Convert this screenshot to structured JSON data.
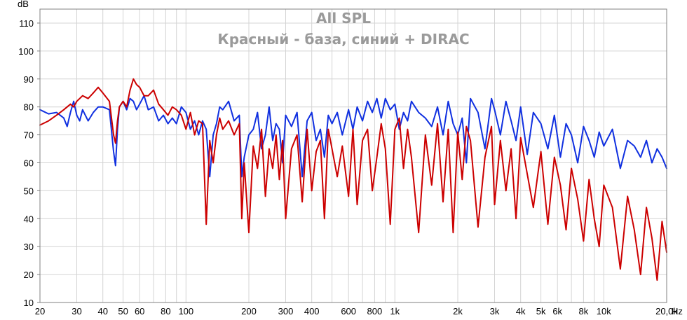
{
  "chart_data": {
    "type": "line",
    "title": "All SPL",
    "subtitle": "Красный - база, синий + DIRAC",
    "ylabel": "dB",
    "xunit": "Hz",
    "xscale": "log",
    "xlim": [
      20,
      20000
    ],
    "ylim": [
      10,
      115
    ],
    "yticks": [
      10,
      20,
      30,
      40,
      50,
      60,
      70,
      80,
      90,
      100,
      110
    ],
    "xticks": [
      {
        "value": 20,
        "label": "20"
      },
      {
        "value": 30,
        "label": "30"
      },
      {
        "value": 40,
        "label": "40"
      },
      {
        "value": 50,
        "label": "50"
      },
      {
        "value": 60,
        "label": "60"
      },
      {
        "value": 80,
        "label": "80"
      },
      {
        "value": 100,
        "label": "100"
      },
      {
        "value": 200,
        "label": "200"
      },
      {
        "value": 300,
        "label": "300"
      },
      {
        "value": 400,
        "label": "400"
      },
      {
        "value": 600,
        "label": "600"
      },
      {
        "value": 800,
        "label": "800"
      },
      {
        "value": 1000,
        "label": "1k"
      },
      {
        "value": 2000,
        "label": "2k"
      },
      {
        "value": 3000,
        "label": "3k"
      },
      {
        "value": 4000,
        "label": "4k"
      },
      {
        "value": 5000,
        "label": "5k"
      },
      {
        "value": 6000,
        "label": "6k"
      },
      {
        "value": 8000,
        "label": "8k"
      },
      {
        "value": 10000,
        "label": "10k"
      },
      {
        "value": 20000,
        "label": "20,0k"
      }
    ],
    "grid": true,
    "series": [
      {
        "color": "#1030e0",
        "x": [
          20,
          22,
          24,
          26,
          27,
          28,
          29,
          30,
          31,
          32,
          34,
          36,
          38,
          40,
          43,
          45,
          46,
          47,
          48,
          50,
          52,
          54,
          56,
          58,
          60,
          63,
          66,
          70,
          74,
          78,
          82,
          86,
          90,
          95,
          100,
          105,
          110,
          115,
          120,
          125,
          130,
          135,
          140,
          145,
          150,
          160,
          170,
          180,
          185,
          190,
          200,
          210,
          220,
          230,
          240,
          250,
          260,
          270,
          280,
          290,
          300,
          320,
          340,
          360,
          380,
          400,
          420,
          440,
          460,
          480,
          500,
          530,
          560,
          600,
          630,
          660,
          700,
          740,
          780,
          820,
          860,
          900,
          950,
          1000,
          1050,
          1100,
          1150,
          1200,
          1300,
          1400,
          1500,
          1600,
          1700,
          1800,
          1900,
          2000,
          2100,
          2200,
          2300,
          2500,
          2700,
          2900,
          3000,
          3200,
          3400,
          3600,
          3800,
          4000,
          4300,
          4600,
          5000,
          5400,
          5800,
          6200,
          6600,
          7000,
          7500,
          8000,
          8500,
          9000,
          9500,
          10000,
          11000,
          12000,
          13000,
          14000,
          15000,
          16000,
          17000,
          18000,
          19000,
          20000
        ],
        "y": [
          79,
          77.5,
          78,
          76,
          73,
          78,
          82,
          77,
          75,
          79,
          75,
          78,
          80,
          80,
          79,
          64,
          59,
          72,
          80,
          82,
          79,
          83,
          82,
          79,
          81,
          84,
          79,
          80,
          75,
          77,
          74,
          76,
          74,
          80,
          78,
          72,
          75,
          70,
          75,
          72,
          55,
          70,
          74,
          80,
          79,
          82,
          75,
          77,
          55,
          62,
          70,
          72,
          78,
          65,
          70,
          80,
          68,
          74,
          72,
          60,
          77,
          73,
          78,
          55,
          75,
          78,
          68,
          72,
          62,
          77,
          74,
          78,
          70,
          79,
          72,
          80,
          75,
          82,
          78,
          83,
          76,
          83,
          79,
          81,
          72,
          78,
          75,
          82,
          78,
          76,
          73,
          80,
          70,
          82,
          74,
          70,
          76,
          60,
          83,
          78,
          65,
          83,
          79,
          70,
          82,
          75,
          68,
          80,
          63,
          78,
          74,
          65,
          77,
          62,
          74,
          70,
          60,
          73,
          68,
          62,
          71,
          66,
          72,
          58,
          68,
          66,
          62,
          68,
          60,
          65,
          62,
          58
        ]
      },
      {
        "color": "#cc0000",
        "x": [
          20,
          22,
          24,
          26,
          27,
          28,
          29,
          30,
          31,
          32,
          34,
          36,
          38,
          40,
          43,
          45,
          46,
          47,
          48,
          50,
          52,
          54,
          56,
          58,
          60,
          63,
          66,
          70,
          74,
          78,
          82,
          86,
          90,
          95,
          100,
          105,
          110,
          115,
          120,
          125,
          130,
          135,
          140,
          145,
          150,
          160,
          170,
          180,
          185,
          190,
          200,
          210,
          220,
          230,
          240,
          250,
          260,
          270,
          280,
          290,
          300,
          320,
          340,
          360,
          380,
          400,
          420,
          440,
          460,
          480,
          500,
          530,
          560,
          600,
          630,
          660,
          700,
          740,
          780,
          820,
          860,
          900,
          950,
          1000,
          1050,
          1100,
          1150,
          1200,
          1300,
          1400,
          1500,
          1600,
          1700,
          1800,
          1900,
          2000,
          2100,
          2200,
          2300,
          2500,
          2700,
          2900,
          3000,
          3200,
          3400,
          3600,
          3800,
          4000,
          4300,
          4600,
          5000,
          5400,
          5800,
          6200,
          6600,
          7000,
          7500,
          8000,
          8500,
          9000,
          9500,
          10000,
          11000,
          12000,
          13000,
          14000,
          15000,
          16000,
          17000,
          18000,
          19000,
          20000
        ],
        "y": [
          73.5,
          75,
          77,
          79,
          80,
          81,
          80,
          82,
          83,
          84,
          83,
          85,
          87,
          85,
          82,
          70,
          67,
          75,
          80,
          82,
          80,
          86,
          90,
          88,
          87,
          84,
          84,
          86,
          81,
          79,
          77,
          80,
          79,
          77,
          72,
          78,
          70,
          75,
          74,
          38,
          68,
          60,
          70,
          76,
          72,
          75,
          70,
          74,
          40,
          60,
          35,
          66,
          58,
          72,
          48,
          65,
          58,
          70,
          54,
          68,
          40,
          65,
          70,
          46,
          72,
          50,
          64,
          68,
          40,
          72,
          65,
          55,
          66,
          48,
          72,
          45,
          68,
          72,
          50,
          62,
          74,
          65,
          38,
          72,
          76,
          58,
          72,
          62,
          35,
          70,
          52,
          74,
          46,
          72,
          35,
          71,
          54,
          73,
          68,
          37,
          62,
          73,
          45,
          68,
          50,
          65,
          40,
          69,
          56,
          44,
          64,
          38,
          62,
          52,
          36,
          58,
          47,
          32,
          54,
          40,
          30,
          52,
          44,
          22,
          48,
          36,
          20,
          44,
          33,
          18,
          39,
          28
        ]
      }
    ]
  }
}
